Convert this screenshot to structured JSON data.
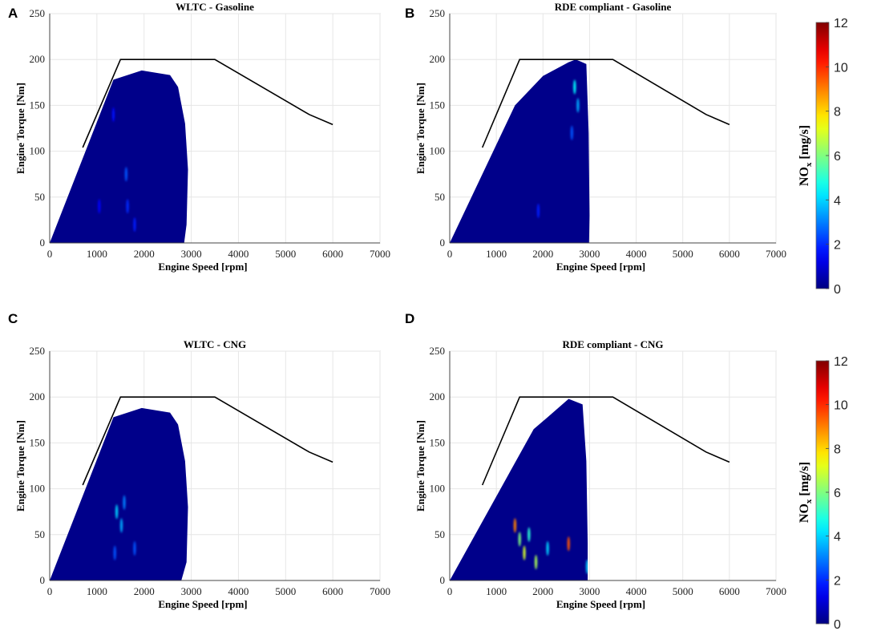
{
  "panels": [
    {
      "id": "A",
      "letter": "A",
      "title": "WLTC - Gasoline",
      "fuel": "Gasoline",
      "cycle": "WLTC",
      "region": [
        [
          0,
          0
        ],
        [
          1350,
          178
        ],
        [
          1950,
          188
        ],
        [
          2550,
          183
        ],
        [
          2720,
          170
        ],
        [
          2870,
          130
        ],
        [
          2930,
          80
        ],
        [
          2900,
          20
        ],
        [
          2850,
          0
        ]
      ],
      "hotspots": [
        {
          "x": 1620,
          "y": 75,
          "nox": 2.5
        },
        {
          "x": 1650,
          "y": 40,
          "nox": 2.0
        },
        {
          "x": 1800,
          "y": 20,
          "nox": 1.8
        },
        {
          "x": 1050,
          "y": 40,
          "nox": 1.5
        },
        {
          "x": 1350,
          "y": 140,
          "nox": 1.6
        }
      ]
    },
    {
      "id": "B",
      "letter": "B",
      "title": "RDE compliant - Gasoline",
      "fuel": "Gasoline",
      "cycle": "RDE compliant",
      "region": [
        [
          0,
          0
        ],
        [
          1400,
          150
        ],
        [
          2000,
          182
        ],
        [
          2550,
          197
        ],
        [
          2700,
          200
        ],
        [
          2800,
          198
        ],
        [
          2930,
          195
        ],
        [
          2980,
          120
        ],
        [
          3000,
          30
        ],
        [
          2990,
          0
        ]
      ],
      "hotspots": [
        {
          "x": 2680,
          "y": 170,
          "nox": 4.5
        },
        {
          "x": 2750,
          "y": 150,
          "nox": 3.5
        },
        {
          "x": 2620,
          "y": 120,
          "nox": 2.5
        },
        {
          "x": 1900,
          "y": 35,
          "nox": 1.8
        }
      ]
    },
    {
      "id": "C",
      "letter": "C",
      "title": "WLTC - CNG",
      "fuel": "CNG",
      "cycle": "WLTC",
      "region": [
        [
          0,
          0
        ],
        [
          1350,
          178
        ],
        [
          1950,
          188
        ],
        [
          2550,
          183
        ],
        [
          2720,
          170
        ],
        [
          2870,
          130
        ],
        [
          2930,
          80
        ],
        [
          2900,
          20
        ],
        [
          2790,
          0
        ]
      ],
      "hotspots": [
        {
          "x": 1420,
          "y": 75,
          "nox": 4.0
        },
        {
          "x": 1520,
          "y": 60,
          "nox": 3.5
        },
        {
          "x": 1580,
          "y": 85,
          "nox": 3.0
        },
        {
          "x": 1380,
          "y": 30,
          "nox": 2.5
        },
        {
          "x": 1800,
          "y": 35,
          "nox": 2.5
        }
      ]
    },
    {
      "id": "D",
      "letter": "D",
      "title": "RDE compliant - CNG",
      "fuel": "CNG",
      "cycle": "RDE compliant",
      "region": [
        [
          0,
          0
        ],
        [
          1800,
          165
        ],
        [
          2100,
          178
        ],
        [
          2550,
          198
        ],
        [
          2850,
          192
        ],
        [
          2930,
          130
        ],
        [
          2960,
          40
        ],
        [
          2960,
          0
        ]
      ],
      "hotspots": [
        {
          "x": 1400,
          "y": 60,
          "nox": 9.0
        },
        {
          "x": 1500,
          "y": 45,
          "nox": 6.0
        },
        {
          "x": 1600,
          "y": 30,
          "nox": 7.0
        },
        {
          "x": 1700,
          "y": 50,
          "nox": 5.0
        },
        {
          "x": 1850,
          "y": 20,
          "nox": 6.5
        },
        {
          "x": 2100,
          "y": 35,
          "nox": 4.0
        },
        {
          "x": 2550,
          "y": 40,
          "nox": 9.5
        },
        {
          "x": 2950,
          "y": 15,
          "nox": 4.0
        }
      ]
    }
  ],
  "chart_data": {
    "type": "heatmap",
    "xlabel": "Engine Speed [rpm]",
    "ylabel": "Engine Torque [Nm]",
    "xlim": [
      0,
      7000
    ],
    "ylim": [
      0,
      250
    ],
    "xticks": [
      0,
      1000,
      2000,
      3000,
      4000,
      5000,
      6000,
      7000
    ],
    "yticks": [
      0,
      50,
      100,
      150,
      200,
      250
    ],
    "limit_curve": {
      "name": "Max torque curve",
      "x": [
        700,
        1500,
        3500,
        5500,
        6000
      ],
      "y": [
        104,
        200,
        200,
        140,
        129
      ]
    },
    "colorbar": {
      "label_main": "NO",
      "label_sub": "x",
      "label_unit": " [mg/s]",
      "range": [
        0,
        12
      ],
      "ticks": [
        0,
        2,
        4,
        6,
        8,
        10,
        12
      ]
    },
    "background_nox": 0
  }
}
